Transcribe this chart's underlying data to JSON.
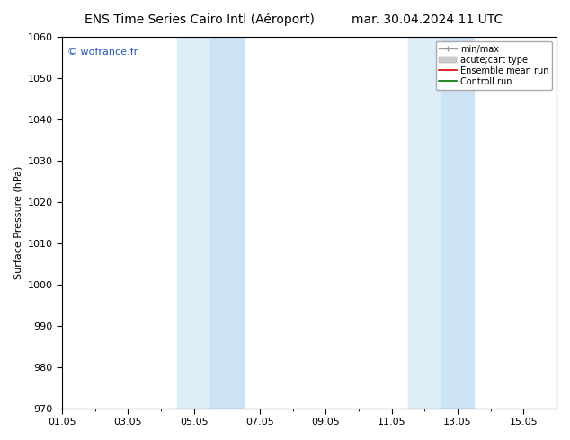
{
  "title_left": "ENS Time Series Cairo Intl (Aéroport)",
  "title_right": "mar. 30.04.2024 11 UTC",
  "ylabel": "Surface Pressure (hPa)",
  "ylim": [
    970,
    1060
  ],
  "yticks": [
    970,
    980,
    990,
    1000,
    1010,
    1020,
    1030,
    1040,
    1050,
    1060
  ],
  "xtick_labels": [
    "01.05",
    "03.05",
    "05.05",
    "07.05",
    "09.05",
    "11.05",
    "13.05",
    "15.05"
  ],
  "xtick_positions": [
    0,
    2,
    4,
    6,
    8,
    10,
    12,
    14
  ],
  "x_min": 0,
  "x_max": 15,
  "shaded_bands": [
    {
      "x_start": 3.5,
      "x_end": 4.5,
      "color": "#ddeef8"
    },
    {
      "x_start": 4.5,
      "x_end": 5.5,
      "color": "#cce3f5"
    },
    {
      "x_start": 10.5,
      "x_end": 11.5,
      "color": "#ddeef8"
    },
    {
      "x_start": 11.5,
      "x_end": 12.5,
      "color": "#cce3f5"
    }
  ],
  "watermark": "© wofrance.fr",
  "watermark_color": "#2255cc",
  "legend_items": [
    {
      "label": "min/max",
      "color": "#999999",
      "style": "line_with_caps"
    },
    {
      "label": "acute;cart type",
      "color": "#cccccc",
      "style": "thick_bar"
    },
    {
      "label": "Ensemble mean run",
      "color": "#cc0000",
      "style": "line"
    },
    {
      "label": "Controll run",
      "color": "#007700",
      "style": "line"
    }
  ],
  "bg_color": "#ffffff",
  "border_color": "#000000",
  "title_fontsize": 10,
  "label_fontsize": 8,
  "tick_fontsize": 8,
  "minor_ticks_per_interval": 1
}
